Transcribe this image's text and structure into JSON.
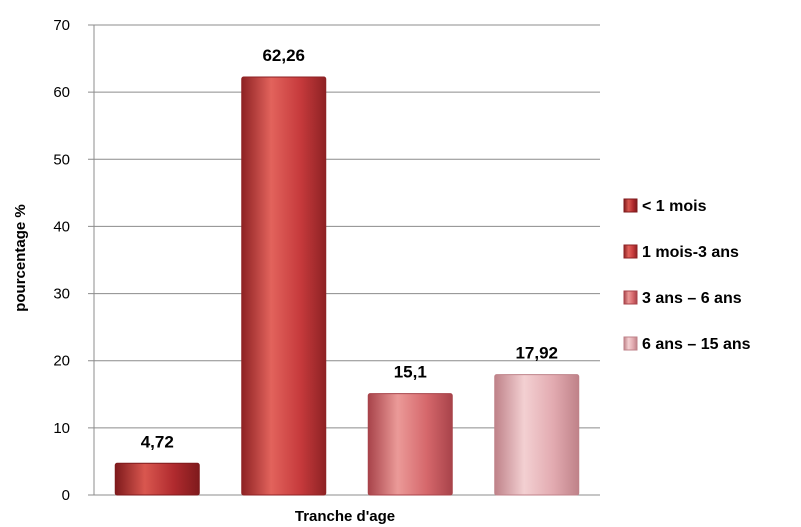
{
  "chart_data": {
    "type": "bar",
    "title": "",
    "xlabel": "Tranche d'age",
    "ylabel": "pourcentage %",
    "ylim": [
      0,
      70
    ],
    "yticks": [
      0,
      10,
      20,
      30,
      40,
      50,
      60,
      70
    ],
    "grid": true,
    "legend_position": "right",
    "series": [
      {
        "name": "< 1 mois",
        "value": 4.72,
        "label": "4,72",
        "color": "#b02a2e",
        "color_light": "#d9574f",
        "color_dark": "#7e1a1c"
      },
      {
        "name": "1 mois-3 ans",
        "value": 62.26,
        "label": "62,26",
        "color": "#c63a3c",
        "color_light": "#e2635c",
        "color_dark": "#8e2224"
      },
      {
        "name": "3 ans – 6 ans",
        "value": 15.1,
        "label": "15,1",
        "color": "#d5676b",
        "color_light": "#eb9a98",
        "color_dark": "#a8434a"
      },
      {
        "name": "6 ans – 15 ans",
        "value": 17.92,
        "label": "17,92",
        "color": "#e2aab0",
        "color_light": "#f3d0d2",
        "color_dark": "#bf8289"
      }
    ]
  }
}
